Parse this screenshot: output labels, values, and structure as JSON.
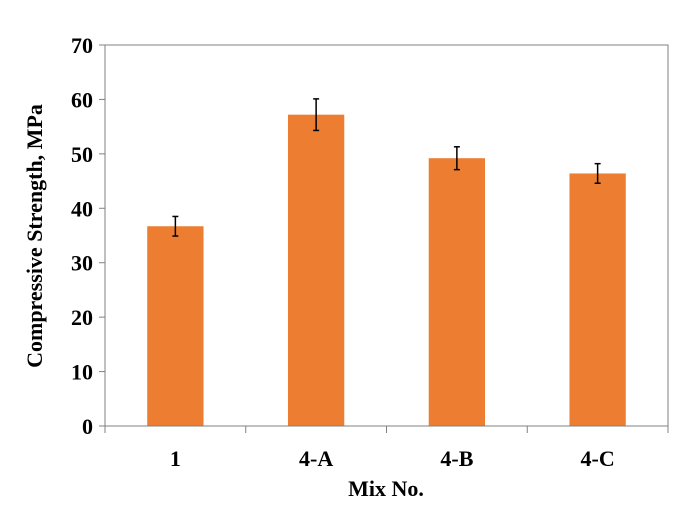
{
  "chart_data": {
    "type": "bar",
    "categories": [
      "1",
      "4-A",
      "4-B",
      "4-C"
    ],
    "values": [
      36.7,
      57.2,
      49.2,
      46.4
    ],
    "error": [
      1.8,
      2.9,
      2.1,
      1.8
    ],
    "xlabel": "Mix No.",
    "ylabel": "Compressive Strength, MPa",
    "ylim": [
      0,
      70
    ],
    "yticks": [
      0,
      10,
      20,
      30,
      40,
      50,
      60,
      70
    ],
    "grid": false,
    "bar_color": "#ED7D31"
  }
}
